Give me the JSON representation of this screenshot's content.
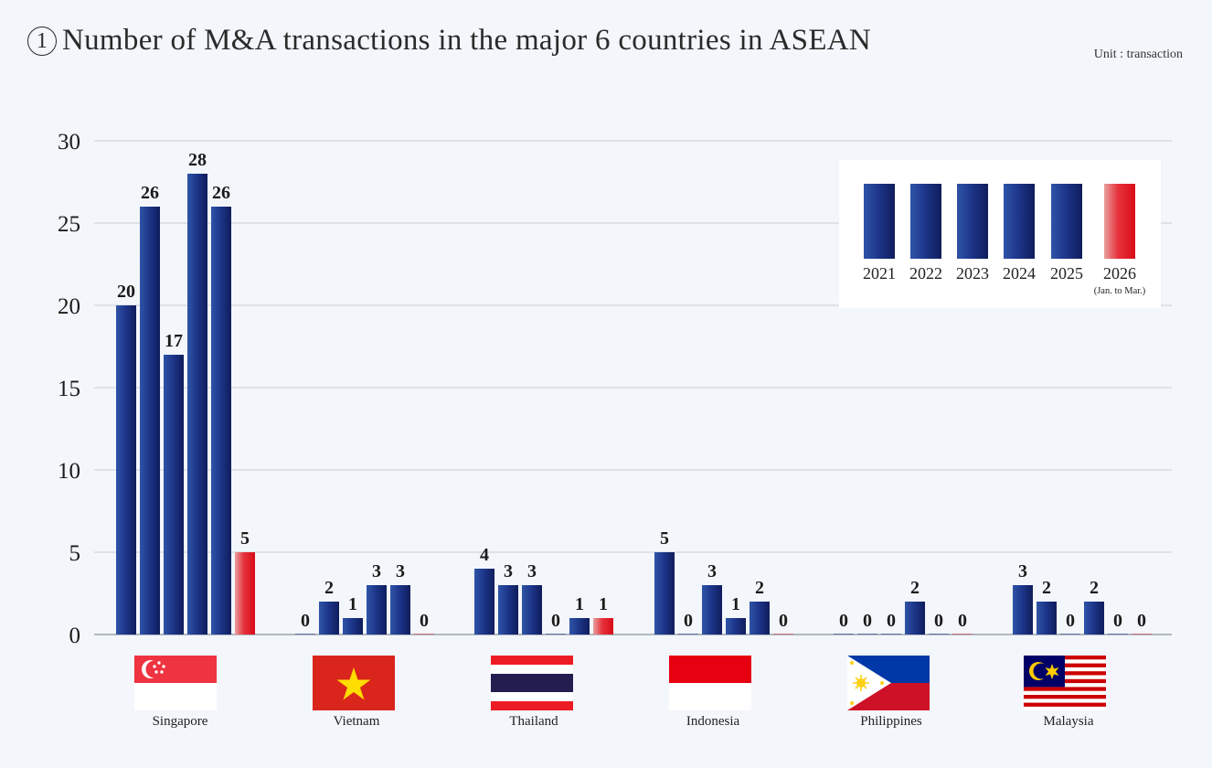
{
  "header": {
    "number_mark": "1",
    "title": "Number of M&A transactions in the major 6 countries in ASEAN",
    "unit": "Unit : transaction"
  },
  "legend": {
    "items": [
      {
        "label": "2021",
        "color": "#1e3a8a"
      },
      {
        "label": "2022",
        "color": "#1e3a8a"
      },
      {
        "label": "2023",
        "color": "#1e3a8a"
      },
      {
        "label": "2024",
        "color": "#1e3a8a"
      },
      {
        "label": "2025",
        "color": "#1e3a8a"
      },
      {
        "label": "2026",
        "sublabel": "(Jan. to Mar.)",
        "color": "#e0101e"
      }
    ]
  },
  "countries": [
    {
      "name": "Singapore",
      "flag": "singapore-flag"
    },
    {
      "name": "Vietnam",
      "flag": "vietnam-flag"
    },
    {
      "name": "Thailand",
      "flag": "thailand-flag"
    },
    {
      "name": "Indonesia",
      "flag": "indonesia-flag"
    },
    {
      "name": "Philippines",
      "flag": "philippines-flag"
    },
    {
      "name": "Malaysia",
      "flag": "malaysia-flag"
    }
  ],
  "chart_data": {
    "type": "bar",
    "title": "Number of M&A transactions in the major 6 countries in ASEAN",
    "xlabel": "",
    "ylabel": "Unit : transaction",
    "ylim": [
      0,
      30
    ],
    "yticks": [
      0,
      5,
      10,
      15,
      20,
      25,
      30
    ],
    "grid": true,
    "legend_position": "top-right",
    "categories": [
      "Singapore",
      "Vietnam",
      "Thailand",
      "Indonesia",
      "Philippines",
      "Malaysia"
    ],
    "series": [
      {
        "name": "2021",
        "values": [
          20,
          0,
          4,
          5,
          0,
          3
        ]
      },
      {
        "name": "2022",
        "values": [
          26,
          2,
          3,
          0,
          0,
          2
        ]
      },
      {
        "name": "2023",
        "values": [
          17,
          1,
          3,
          3,
          0,
          0
        ]
      },
      {
        "name": "2024",
        "values": [
          28,
          3,
          0,
          1,
          2,
          2
        ]
      },
      {
        "name": "2025",
        "values": [
          26,
          3,
          1,
          2,
          0,
          0
        ]
      },
      {
        "name": "2026 (Jan. to Mar.)",
        "values": [
          5,
          0,
          1,
          0,
          0,
          0
        ]
      }
    ]
  }
}
